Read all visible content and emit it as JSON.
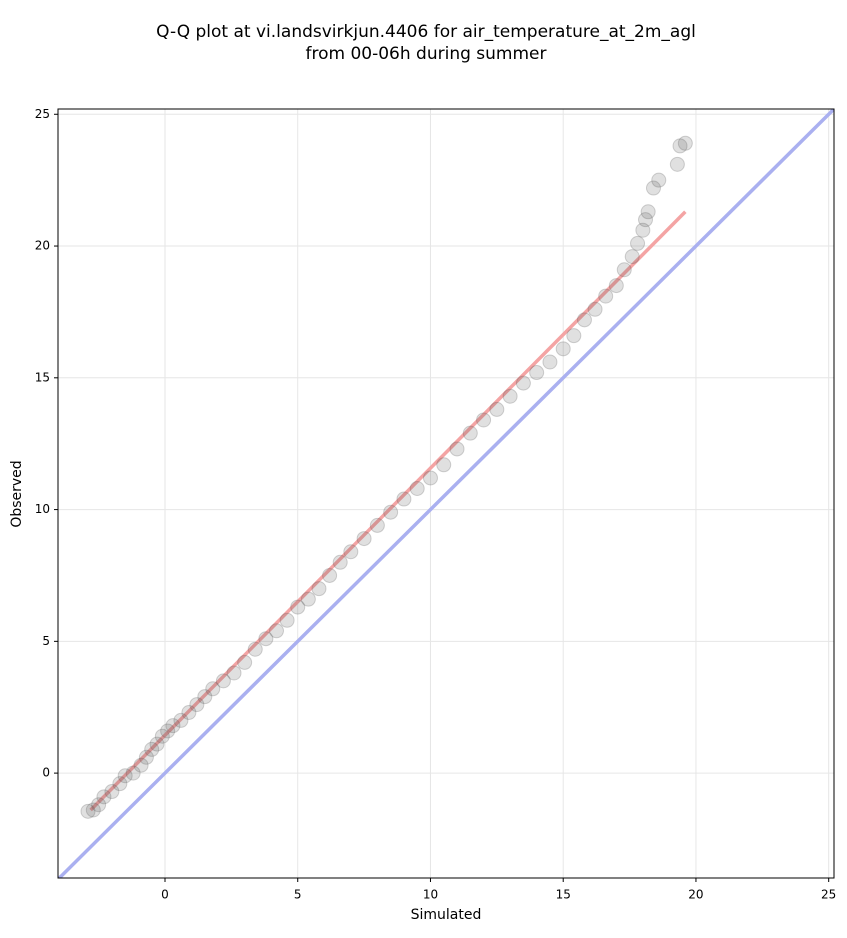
{
  "chart_data": {
    "type": "scatter",
    "title": [
      "Q-Q plot at vi.landsvirkjun.4406 for air_temperature_at_2m_agl",
      "from 00-06h during summer"
    ],
    "xlabel": "Simulated",
    "ylabel": "Observed",
    "xlim": [
      -4.03,
      25.2
    ],
    "ylim": [
      -3.98,
      25.2
    ],
    "xticks": [
      0,
      5,
      10,
      15,
      20,
      25
    ],
    "yticks": [
      0,
      5,
      10,
      15,
      20,
      25
    ],
    "grid": true,
    "series": [
      {
        "color": "#555555",
        "x": [
          -2.9,
          -2.7,
          -2.5,
          -2.3,
          -2.0,
          -1.7,
          -1.5,
          -1.2,
          -0.9,
          -0.7,
          -0.5,
          -0.3,
          -0.1,
          0.1,
          0.3,
          0.6,
          0.9,
          1.2,
          1.5,
          1.8,
          2.2,
          2.6,
          3.0,
          3.4,
          3.8,
          4.2,
          4.6,
          5.0,
          5.4,
          5.8,
          6.2,
          6.6,
          7.0,
          7.5,
          8.0,
          8.5,
          9.0,
          9.5,
          10.0,
          10.5,
          11.0,
          11.5,
          12.0,
          12.5,
          13.0,
          13.5,
          14.0,
          14.5,
          15.0,
          15.4,
          15.8,
          16.2,
          16.6,
          17.0,
          17.3,
          17.6,
          17.8,
          18.0,
          18.1,
          18.2,
          18.4,
          18.6,
          19.3,
          19.4,
          19.6
        ],
        "y": [
          -1.45,
          -1.4,
          -1.2,
          -0.9,
          -0.7,
          -0.4,
          -0.1,
          0.0,
          0.3,
          0.6,
          0.9,
          1.1,
          1.4,
          1.6,
          1.8,
          2.0,
          2.3,
          2.6,
          2.9,
          3.2,
          3.5,
          3.8,
          4.2,
          4.7,
          5.1,
          5.4,
          5.8,
          6.3,
          6.6,
          7.0,
          7.5,
          8.0,
          8.4,
          8.9,
          9.4,
          9.9,
          10.4,
          10.8,
          11.2,
          11.7,
          12.3,
          12.9,
          13.4,
          13.8,
          14.3,
          14.8,
          15.2,
          15.6,
          16.1,
          16.6,
          17.2,
          17.6,
          18.1,
          18.5,
          19.1,
          19.6,
          20.1,
          20.6,
          21.0,
          21.3,
          22.2,
          22.5,
          23.1,
          23.8,
          23.9
        ]
      }
    ],
    "lines": [
      {
        "color": "#aab0f0",
        "x": [
          -4.03,
          25.2
        ],
        "y": [
          -4.03,
          25.2
        ]
      },
      {
        "color": "#f4a4a4",
        "x": [
          -2.8,
          19.6
        ],
        "y": [
          -1.4,
          21.3
        ]
      }
    ]
  }
}
